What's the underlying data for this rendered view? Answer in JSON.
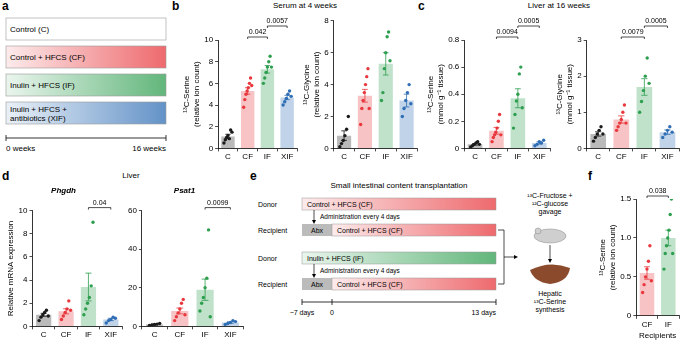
{
  "letters": [
    "a",
    "b",
    "c",
    "d",
    "e",
    "f"
  ],
  "panel_titles": {
    "b": "Serum at 4 weeks",
    "c": "Liver at 16 weeks",
    "d": "Liver"
  },
  "diagram_a": {
    "groups": [
      {
        "label": "Control (C)",
        "color": "#ffffff"
      },
      {
        "label": "Control + HFCS (CF)",
        "color": "#e8383d"
      },
      {
        "label": "Inulin + HFCS (IF)",
        "color": "#2e9e4f"
      },
      {
        "label": "Inulin + HFCS + antibiotics (XIF)",
        "color": "#2f6eb5"
      }
    ],
    "timeline": [
      "0 weeks",
      "16 weeks"
    ]
  },
  "diagram_e": {
    "title": "Small intestinal content transplantation",
    "arms": [
      {
        "donor_label": "Donor",
        "donor": "Control + HFCS (CF)",
        "donor_color": "#e8383d",
        "transfer": "Administration every 4 days",
        "recipient_label": "Recipient",
        "pretreatment": "Abx",
        "recipient": "Control + HFCS (CF)",
        "recipient_color": "#e8383d"
      },
      {
        "donor_label": "Donor",
        "donor": "Inulin + HFCS (IF)",
        "donor_color": "#2e9e4f",
        "transfer": "Administration every 4 days",
        "recipient_label": "Recipient",
        "pretreatment": "Abx",
        "recipient": "Control + HFCS (CF)",
        "recipient_color": "#e8383d"
      }
    ],
    "timeline": [
      "−7 days",
      "0",
      "13 days"
    ],
    "gavage": "¹³C-Fructose + ¹²C-glucose gavage",
    "readout": "Hepatic ¹³C-Serine synthesis"
  },
  "chart_data": [
    {
      "panel": "b",
      "type": "bar",
      "y_label": "¹³C-Serine (relative ion count)",
      "categories": [
        "C",
        "CF",
        "IF",
        "XIF"
      ],
      "values": [
        1.1,
        5.3,
        7.3,
        4.7
      ],
      "errors": [
        0.2,
        0.3,
        0.35,
        0.2
      ],
      "points": [
        [
          0.5,
          0.8,
          1.0,
          1.2,
          0.9,
          1.7,
          1.5
        ],
        [
          3.8,
          4.5,
          5.0,
          5.3,
          5.6,
          6.0,
          6.5,
          5.8
        ],
        [
          6.0,
          6.5,
          7.0,
          7.5,
          8.0,
          8.5,
          7.5
        ],
        [
          4.0,
          4.3,
          4.6,
          5.0,
          5.3,
          4.8
        ]
      ],
      "colors": [
        "#1a1a1a",
        "#e8383d",
        "#2e9e4f",
        "#2f6eb5"
      ],
      "ylim": [
        0,
        10
      ],
      "yticks": [
        0,
        2,
        4,
        6,
        8,
        10
      ],
      "grid": false,
      "significance": [
        {
          "from": "CF",
          "to": "IF",
          "p": 0.042
        },
        {
          "from": "IF",
          "to": "XIF",
          "p": 0.0057
        }
      ]
    },
    {
      "panel": "b",
      "type": "bar",
      "y_label": "¹³C-Glycine (relative ion count)",
      "categories": [
        "C",
        "CF",
        "IF",
        "XIF"
      ],
      "values": [
        0.8,
        3.3,
        5.3,
        3.0
      ],
      "errors": [
        0.3,
        0.4,
        0.7,
        0.4
      ],
      "points": [
        [
          0.1,
          0.3,
          0.5,
          0.8,
          1.2,
          2.0
        ],
        [
          1.5,
          2.5,
          3.0,
          3.5,
          4.0,
          4.5,
          5.0,
          2.5
        ],
        [
          3.0,
          3.5,
          5.0,
          6.0,
          7.0,
          7.3,
          5.5
        ],
        [
          2.0,
          2.5,
          3.0,
          3.5,
          4.0,
          2.8
        ]
      ],
      "colors": [
        "#1a1a1a",
        "#e8383d",
        "#2e9e4f",
        "#2f6eb5"
      ],
      "ylim": [
        0,
        8
      ],
      "yticks": [
        0,
        2,
        4,
        6,
        8
      ],
      "grid": false
    },
    {
      "panel": "c",
      "type": "bar",
      "y_label": "¹³C-Serine (mmol g⁻¹ tissue)",
      "categories": [
        "C",
        "CF",
        "IF",
        "XIF"
      ],
      "values": [
        0.03,
        0.13,
        0.37,
        0.04
      ],
      "errors": [
        0.006,
        0.025,
        0.07,
        0.008
      ],
      "points": [
        [
          0.01,
          0.02,
          0.03,
          0.04,
          0.05,
          0.03
        ],
        [
          0.05,
          0.08,
          0.1,
          0.12,
          0.15,
          0.2,
          0.25,
          0.1
        ],
        [
          0.15,
          0.25,
          0.35,
          0.4,
          0.55,
          0.6,
          0.3
        ],
        [
          0.02,
          0.03,
          0.05,
          0.04,
          0.06
        ]
      ],
      "colors": [
        "#1a1a1a",
        "#e8383d",
        "#2e9e4f",
        "#2f6eb5"
      ],
      "ylim": [
        0,
        0.8
      ],
      "yticks": [
        0,
        0.2,
        0.4,
        0.6,
        0.8
      ],
      "grid": false,
      "significance": [
        {
          "from": "CF",
          "to": "IF",
          "p": 0.0094
        },
        {
          "from": "IF",
          "to": "XIF",
          "p": 0.0005
        }
      ]
    },
    {
      "panel": "c",
      "type": "bar",
      "y_label": "¹³C-Glycine (mmol g⁻¹ tissue)",
      "categories": [
        "C",
        "CF",
        "IF",
        "XIF"
      ],
      "values": [
        0.4,
        0.8,
        1.7,
        0.45
      ],
      "errors": [
        0.06,
        0.1,
        0.23,
        0.06
      ],
      "points": [
        [
          0.2,
          0.3,
          0.4,
          0.5,
          0.6,
          0.4
        ],
        [
          0.5,
          0.6,
          0.7,
          0.8,
          1.0,
          1.2,
          0.7
        ],
        [
          1.0,
          1.3,
          1.6,
          2.0,
          2.5,
          1.8
        ],
        [
          0.3,
          0.4,
          0.5,
          0.6,
          0.45
        ]
      ],
      "colors": [
        "#1a1a1a",
        "#e8383d",
        "#2e9e4f",
        "#2f6eb5"
      ],
      "ylim": [
        0,
        3
      ],
      "yticks": [
        0,
        1,
        2,
        3
      ],
      "grid": false,
      "significance": [
        {
          "from": "CF",
          "to": "IF",
          "p": 0.0079
        },
        {
          "from": "IF",
          "to": "XIF",
          "p": 0.0005
        }
      ]
    },
    {
      "panel": "d",
      "type": "bar",
      "title": "Phgdh",
      "y_label": "Relative mRNA expression",
      "categories": [
        "C",
        "CF",
        "IF",
        "XIF"
      ],
      "values": [
        1.0,
        1.3,
        3.4,
        0.6
      ],
      "errors": [
        0.13,
        0.22,
        1.2,
        0.1
      ],
      "points": [
        [
          0.5,
          0.8,
          1.0,
          1.2,
          1.4,
          0.9
        ],
        [
          0.6,
          0.9,
          1.2,
          1.5,
          2.2,
          1.4
        ],
        [
          1.0,
          1.5,
          2.0,
          2.5,
          3.5,
          9.0
        ],
        [
          0.3,
          0.5,
          0.6,
          0.8,
          0.7
        ]
      ],
      "colors": [
        "#1a1a1a",
        "#e8383d",
        "#2e9e4f",
        "#2f6eb5"
      ],
      "ylim": [
        0,
        10
      ],
      "yticks": [
        0,
        2,
        4,
        6,
        8,
        10
      ],
      "grid": false,
      "significance": [
        {
          "from": "IF",
          "to": "XIF",
          "p": 0.04
        }
      ]
    },
    {
      "panel": "d",
      "type": "bar",
      "title": "Psat1",
      "categories": [
        "C",
        "CF",
        "IF",
        "XIF"
      ],
      "values": [
        1.0,
        8.0,
        19.0,
        2.0
      ],
      "errors": [
        0.2,
        1.5,
        5.5,
        0.4
      ],
      "points": [
        [
          0.5,
          0.8,
          1.0,
          1.2,
          1.5
        ],
        [
          3,
          5,
          7,
          9,
          12,
          14,
          6
        ],
        [
          8,
          12,
          15,
          20,
          25,
          50,
          5
        ],
        [
          1,
          1.5,
          2,
          3,
          2.5
        ]
      ],
      "colors": [
        "#1a1a1a",
        "#e8383d",
        "#2e9e4f",
        "#2f6eb5"
      ],
      "ylim": [
        0,
        60
      ],
      "yticks": [
        0,
        20,
        40,
        60
      ],
      "grid": false,
      "significance": [
        {
          "from": "IF",
          "to": "XIF",
          "p": 0.0099
        }
      ]
    },
    {
      "panel": "f",
      "type": "bar",
      "y_label": "¹³C-Serine (relative ion count)",
      "x_label": "Recipients",
      "categories": [
        "CF",
        "IF"
      ],
      "values": [
        0.55,
        1.0
      ],
      "errors": [
        0.08,
        0.1
      ],
      "points": [
        [
          0.3,
          0.4,
          0.5,
          0.6,
          0.7,
          0.9,
          0.45
        ],
        [
          0.6,
          0.8,
          0.9,
          1.0,
          1.1,
          1.3,
          1.5,
          0.8
        ]
      ],
      "colors": [
        "#e8383d",
        "#2e9e4f"
      ],
      "ylim": [
        0,
        1.5
      ],
      "yticks": [
        0,
        0.5,
        {
          "value": 1,
          "label": "1.0"
        },
        1.5
      ],
      "grid": false,
      "significance": [
        {
          "from": "CF",
          "to": "IF",
          "p": 0.038
        }
      ]
    }
  ]
}
